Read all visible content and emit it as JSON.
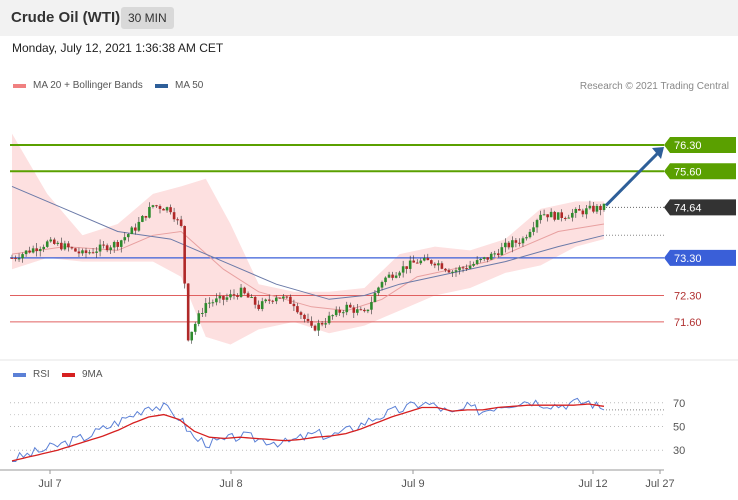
{
  "header": {
    "title": "Crude Oil (WTI)",
    "interval": "30 MIN"
  },
  "datetime": "Monday, July 12, 2021 1:36:38 AM CET",
  "legend": {
    "ma20": "MA 20 + Bollinger Bands",
    "ma50": "MA 50",
    "ma20_color": "#f08080",
    "ma50_color": "#2e5f99"
  },
  "copyright": "Research © 2021 Trading Central",
  "rsi_legend": {
    "rsi": "RSI",
    "ma9": "9MA",
    "rsi_color": "#5b80d6",
    "ma9_color": "#d62020"
  },
  "colors": {
    "up": "#2e8b2e",
    "down": "#b02828",
    "resistance": "#5aa000",
    "pivot": "#3a5fd8",
    "support": "#e06060",
    "last_price": "#333333",
    "band_fill": "#fde0e0",
    "forecast_arrow": "#2e5f99"
  },
  "chart_data": [
    {
      "type": "candlestick",
      "title": "Crude Oil (WTI)",
      "interval": "30 MIN",
      "ylim": [
        70.8,
        77.6
      ],
      "x_ticks": [
        "Jul 7",
        "Jul 8",
        "Jul 9",
        "Jul 12",
        "Jul 27"
      ],
      "last_price": "74.64",
      "resistance": [
        "76.30",
        "75.60"
      ],
      "pivot": "73.30",
      "support": [
        "72.30",
        "71.60"
      ],
      "forecast": {
        "from": 74.64,
        "to": 76.3
      },
      "close_path": [
        {
          "t": 0,
          "v": 73.3
        },
        {
          "t": 5,
          "v": 73.5
        },
        {
          "t": 10,
          "v": 73.7
        },
        {
          "t": 15,
          "v": 73.6
        },
        {
          "t": 20,
          "v": 73.4
        },
        {
          "t": 25,
          "v": 73.55
        },
        {
          "t": 30,
          "v": 73.7
        },
        {
          "t": 35,
          "v": 74.1
        },
        {
          "t": 40,
          "v": 74.7
        },
        {
          "t": 45,
          "v": 74.6
        },
        {
          "t": 48,
          "v": 74.1
        },
        {
          "t": 50,
          "v": 71.2
        },
        {
          "t": 55,
          "v": 72.1
        },
        {
          "t": 60,
          "v": 72.2
        },
        {
          "t": 65,
          "v": 72.4
        },
        {
          "t": 70,
          "v": 72.0
        },
        {
          "t": 75,
          "v": 72.3
        },
        {
          "t": 80,
          "v": 72.1
        },
        {
          "t": 85,
          "v": 71.4
        },
        {
          "t": 90,
          "v": 71.7
        },
        {
          "t": 95,
          "v": 72.0
        },
        {
          "t": 100,
          "v": 71.8
        },
        {
          "t": 105,
          "v": 72.7
        },
        {
          "t": 110,
          "v": 73.0
        },
        {
          "t": 115,
          "v": 73.2
        },
        {
          "t": 120,
          "v": 73.2
        },
        {
          "t": 125,
          "v": 72.95
        },
        {
          "t": 130,
          "v": 73.1
        },
        {
          "t": 135,
          "v": 73.3
        },
        {
          "t": 140,
          "v": 73.6
        },
        {
          "t": 145,
          "v": 73.8
        },
        {
          "t": 150,
          "v": 74.5
        },
        {
          "t": 155,
          "v": 74.4
        },
        {
          "t": 160,
          "v": 74.5
        },
        {
          "t": 165,
          "v": 74.6
        },
        {
          "t": 168,
          "v": 74.64
        }
      ],
      "ma20_path": [
        {
          "t": 0,
          "v": 73.4
        },
        {
          "t": 15,
          "v": 73.6
        },
        {
          "t": 30,
          "v": 73.5
        },
        {
          "t": 40,
          "v": 73.9
        },
        {
          "t": 48,
          "v": 74.0
        },
        {
          "t": 60,
          "v": 73.0
        },
        {
          "t": 70,
          "v": 72.4
        },
        {
          "t": 85,
          "v": 72.0
        },
        {
          "t": 95,
          "v": 71.9
        },
        {
          "t": 105,
          "v": 72.2
        },
        {
          "t": 115,
          "v": 72.8
        },
        {
          "t": 125,
          "v": 73.0
        },
        {
          "t": 135,
          "v": 73.2
        },
        {
          "t": 145,
          "v": 73.6
        },
        {
          "t": 155,
          "v": 74.0
        },
        {
          "t": 168,
          "v": 74.2
        }
      ],
      "ma50_path": [
        {
          "t": 0,
          "v": 75.2
        },
        {
          "t": 15,
          "v": 74.6
        },
        {
          "t": 30,
          "v": 74.0
        },
        {
          "t": 45,
          "v": 73.8
        },
        {
          "t": 60,
          "v": 73.2
        },
        {
          "t": 75,
          "v": 72.6
        },
        {
          "t": 90,
          "v": 72.2
        },
        {
          "t": 100,
          "v": 72.3
        },
        {
          "t": 110,
          "v": 72.6
        },
        {
          "t": 125,
          "v": 72.9
        },
        {
          "t": 140,
          "v": 73.2
        },
        {
          "t": 155,
          "v": 73.6
        },
        {
          "t": 168,
          "v": 73.9
        }
      ],
      "band_upper": [
        {
          "t": 0,
          "v": 76.6
        },
        {
          "t": 10,
          "v": 75.0
        },
        {
          "t": 20,
          "v": 73.9
        },
        {
          "t": 30,
          "v": 74.2
        },
        {
          "t": 40,
          "v": 75.0
        },
        {
          "t": 48,
          "v": 75.2
        },
        {
          "t": 55,
          "v": 75.4
        },
        {
          "t": 62,
          "v": 74.2
        },
        {
          "t": 70,
          "v": 72.6
        },
        {
          "t": 80,
          "v": 72.4
        },
        {
          "t": 90,
          "v": 72.4
        },
        {
          "t": 100,
          "v": 72.5
        },
        {
          "t": 110,
          "v": 73.4
        },
        {
          "t": 120,
          "v": 73.6
        },
        {
          "t": 130,
          "v": 73.5
        },
        {
          "t": 140,
          "v": 73.8
        },
        {
          "t": 150,
          "v": 74.6
        },
        {
          "t": 160,
          "v": 74.8
        },
        {
          "t": 168,
          "v": 74.8
        }
      ],
      "band_lower": [
        {
          "t": 0,
          "v": 73.0
        },
        {
          "t": 10,
          "v": 73.3
        },
        {
          "t": 20,
          "v": 73.2
        },
        {
          "t": 30,
          "v": 73.2
        },
        {
          "t": 40,
          "v": 73.2
        },
        {
          "t": 48,
          "v": 72.8
        },
        {
          "t": 55,
          "v": 71.2
        },
        {
          "t": 62,
          "v": 71.0
        },
        {
          "t": 70,
          "v": 71.4
        },
        {
          "t": 80,
          "v": 71.6
        },
        {
          "t": 90,
          "v": 71.3
        },
        {
          "t": 100,
          "v": 71.5
        },
        {
          "t": 110,
          "v": 71.9
        },
        {
          "t": 120,
          "v": 72.3
        },
        {
          "t": 130,
          "v": 72.5
        },
        {
          "t": 140,
          "v": 72.9
        },
        {
          "t": 150,
          "v": 73.1
        },
        {
          "t": 160,
          "v": 73.6
        },
        {
          "t": 168,
          "v": 73.8
        }
      ]
    },
    {
      "type": "line",
      "series": [
        {
          "name": "RSI",
          "values": [
            22,
            26,
            30,
            34,
            38,
            42,
            48,
            54,
            60,
            68,
            66,
            58,
            40,
            36,
            38,
            42,
            40,
            38,
            36,
            40,
            44,
            42,
            46,
            52,
            58,
            62,
            66,
            70,
            67,
            60,
            66,
            63,
            68,
            70,
            72,
            70,
            68,
            70,
            71,
            64
          ]
        },
        {
          "name": "9MA",
          "values": [
            21,
            24,
            27,
            30,
            34,
            38,
            42,
            47,
            53,
            58,
            60,
            56,
            46,
            41,
            40,
            41,
            40,
            39,
            38,
            39,
            41,
            42,
            44,
            48,
            53,
            58,
            62,
            66,
            66,
            63,
            64,
            64,
            66,
            67,
            68,
            68,
            68,
            68,
            69,
            67
          ]
        }
      ],
      "ylim": [
        15,
        85
      ],
      "y_ticks": [
        "70",
        "50",
        "30"
      ],
      "y_tick_values": [
        70,
        50,
        30
      ]
    }
  ]
}
